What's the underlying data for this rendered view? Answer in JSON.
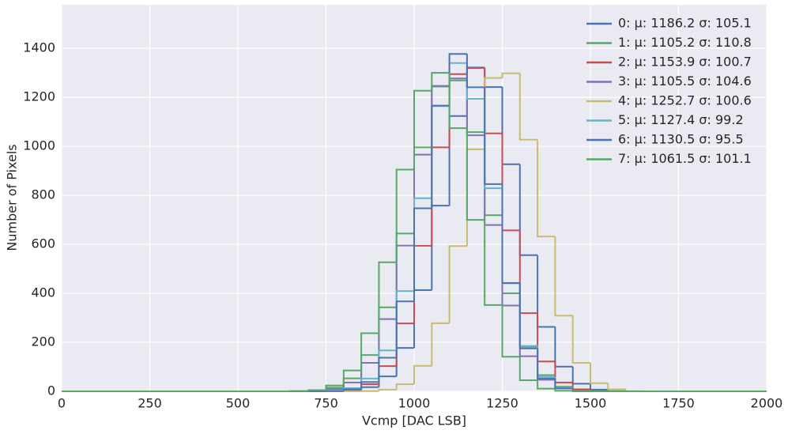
{
  "chart_data": {
    "type": "histogram",
    "xlabel": "Vcmp [DAC LSB]",
    "ylabel": "Number of Pixels",
    "xlim": [
      0,
      2000
    ],
    "ylim": [
      0,
      1578
    ],
    "xticks": [
      0,
      250,
      500,
      750,
      1000,
      1250,
      1500,
      1750,
      2000
    ],
    "yticks": [
      0,
      200,
      400,
      600,
      800,
      1000,
      1200,
      1400
    ],
    "grid": true,
    "legend": "upper right",
    "bins": [
      0,
      600,
      650,
      700,
      750,
      800,
      850,
      900,
      950,
      1000,
      1050,
      1100,
      1150,
      1200,
      1250,
      1300,
      1350,
      1400,
      1450,
      1500,
      1550,
      1600,
      1650,
      1700,
      2000
    ],
    "series": [
      {
        "name": "0: μ: 1186.2 σ: 105.1",
        "color": "#4c72b0",
        "values": [
          0,
          0,
          0,
          0,
          1,
          4,
          17,
          61,
          177,
          413,
          758,
          1124,
          1322,
          1242,
          927,
          556,
          263,
          101,
          31,
          7,
          1,
          0,
          0,
          0
        ]
      },
      {
        "name": "1: μ: 1105.2 σ: 110.8",
        "color": "#55a868",
        "values": [
          0,
          0,
          1,
          4,
          15,
          53,
          148,
          343,
          644,
          996,
          1244,
          1269,
          1058,
          719,
          400,
          182,
          66,
          19,
          5,
          1,
          0,
          0,
          0,
          0
        ]
      },
      {
        "name": "2: μ: 1153.9 σ: 100.7",
        "color": "#c44e52",
        "values": [
          0,
          0,
          0,
          0,
          1,
          6,
          29,
          103,
          277,
          594,
          996,
          1295,
          1320,
          1053,
          657,
          319,
          122,
          36,
          8,
          1,
          0,
          0,
          0,
          0
        ]
      },
      {
        "name": "3: μ: 1105.5 σ: 104.6",
        "color": "#8172b2",
        "values": [
          0,
          0,
          0,
          2,
          9,
          36,
          116,
          295,
          595,
          966,
          1247,
          1277,
          1045,
          679,
          350,
          143,
          47,
          12,
          3,
          0,
          0,
          0,
          0,
          0
        ]
      },
      {
        "name": "4: μ: 1252.7 σ: 100.6",
        "color": "#ccb974",
        "values": [
          0,
          0,
          0,
          0,
          0,
          0,
          1,
          7,
          29,
          104,
          278,
          593,
          988,
          1279,
          1298,
          1027,
          632,
          309,
          116,
          33,
          8,
          1,
          0,
          0
        ]
      },
      {
        "name": "5: μ: 1127.4 σ: 99.2",
        "color": "#64b5cd",
        "values": [
          0,
          0,
          0,
          0,
          2,
          13,
          52,
          167,
          409,
          788,
          1164,
          1340,
          1194,
          829,
          441,
          185,
          59,
          15,
          3,
          0,
          0,
          0,
          0,
          0
        ]
      },
      {
        "name": "6: μ: 1130.5 σ: 95.5",
        "color": "#4c72b0",
        "values": [
          0,
          0,
          0,
          0,
          1,
          8,
          38,
          137,
          367,
          747,
          1166,
          1377,
          1241,
          846,
          442,
          175,
          52,
          12,
          2,
          0,
          0,
          0,
          0,
          0
        ]
      },
      {
        "name": "7: μ: 1061.5 σ: 101.1",
        "color": "#55a868",
        "values": [
          0,
          0,
          1,
          5,
          24,
          85,
          237,
          527,
          905,
          1227,
          1300,
          1074,
          700,
          352,
          141,
          45,
          11,
          2,
          0,
          0,
          0,
          0,
          0,
          0
        ]
      }
    ]
  }
}
